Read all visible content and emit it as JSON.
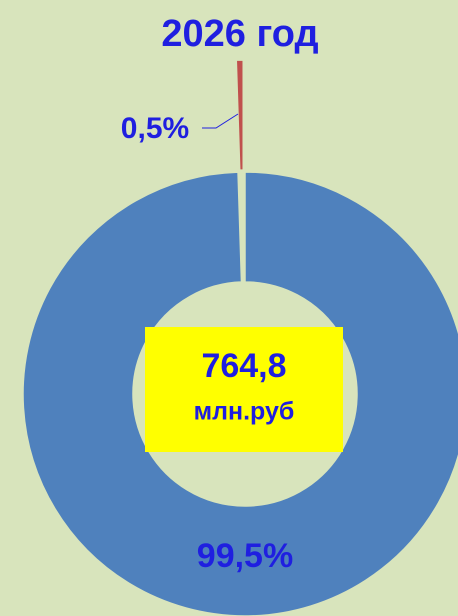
{
  "chart_data": {
    "type": "pie",
    "title": "2026 год",
    "categories": [
      null,
      null
    ],
    "series": [
      {
        "name": null,
        "colors": [
          "#4f81bd",
          "#c0504d"
        ],
        "values": [
          99.5,
          0.5
        ],
        "value_labels": [
          "99,5%",
          "0,5%"
        ]
      }
    ],
    "annotations": [
      "764,8",
      "млн.руб"
    ]
  }
}
